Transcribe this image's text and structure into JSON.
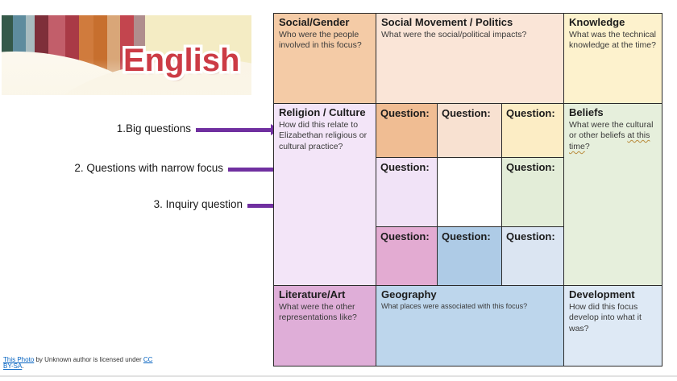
{
  "banner": {
    "title": "English"
  },
  "annotations": [
    {
      "label": "1.Big questions"
    },
    {
      "label": "2. Questions with narrow focus"
    },
    {
      "label": "3. Inquiry question"
    }
  ],
  "arrow_color": "#7030a0",
  "table": {
    "social_gender": {
      "title": "Social/Gender",
      "subtitle": "Who were the people involved in this focus?",
      "bg": "#f4cba6"
    },
    "social_movement": {
      "title": "Social Movement / Politics",
      "subtitle": "What were the social/political impacts?",
      "bg": "#fae5d7"
    },
    "knowledge": {
      "title": "Knowledge",
      "subtitle": "What was the technical knowledge at the time?",
      "bg": "#fdf2cd"
    },
    "religion_culture": {
      "title": "Religion / Culture",
      "subtitle": "How did this relate to Elizabethan religious or cultural practice?",
      "bg": "#f3e5f8"
    },
    "beliefs": {
      "title": "Beliefs",
      "subtitle_1": "What were the cultural or other beliefs ",
      "subtitle_flagged": "at this time",
      "subtitle_2": "?",
      "bg": "#e6efdc"
    },
    "literature_art": {
      "title": "Literature/Art",
      "subtitle": "What were the other representations like?",
      "bg": "#dfaed8"
    },
    "geography": {
      "title": "Geography",
      "subtitle": "What places were associated with this focus?",
      "bg": "#bdd6ec"
    },
    "development": {
      "title": "Development",
      "subtitle": "How did this focus develop into what it was?",
      "bg": "#dee9f5"
    },
    "question_cells": [
      {
        "label": "Question:",
        "bg": "#f0bd93"
      },
      {
        "label": "Question:",
        "bg": "#f8e1d1"
      },
      {
        "label": "Question:",
        "bg": "#fcedc5"
      },
      {
        "label": "Question:",
        "bg": "#f1e3f7"
      },
      {
        "label": "",
        "bg": "#ffffff"
      },
      {
        "label": "Question:",
        "bg": "#e3edd8"
      },
      {
        "label": "Question:",
        "bg": "#e3abd2"
      },
      {
        "label": "Question:",
        "bg": "#aecbe6"
      },
      {
        "label": "Question:",
        "bg": "#dbe5f2"
      }
    ]
  },
  "attribution": {
    "link1": "This Photo",
    "text1": " by Unknown author is licensed under ",
    "link2": "CC BY-SA",
    "text2": ".",
    "link_color": "#0563C1"
  }
}
